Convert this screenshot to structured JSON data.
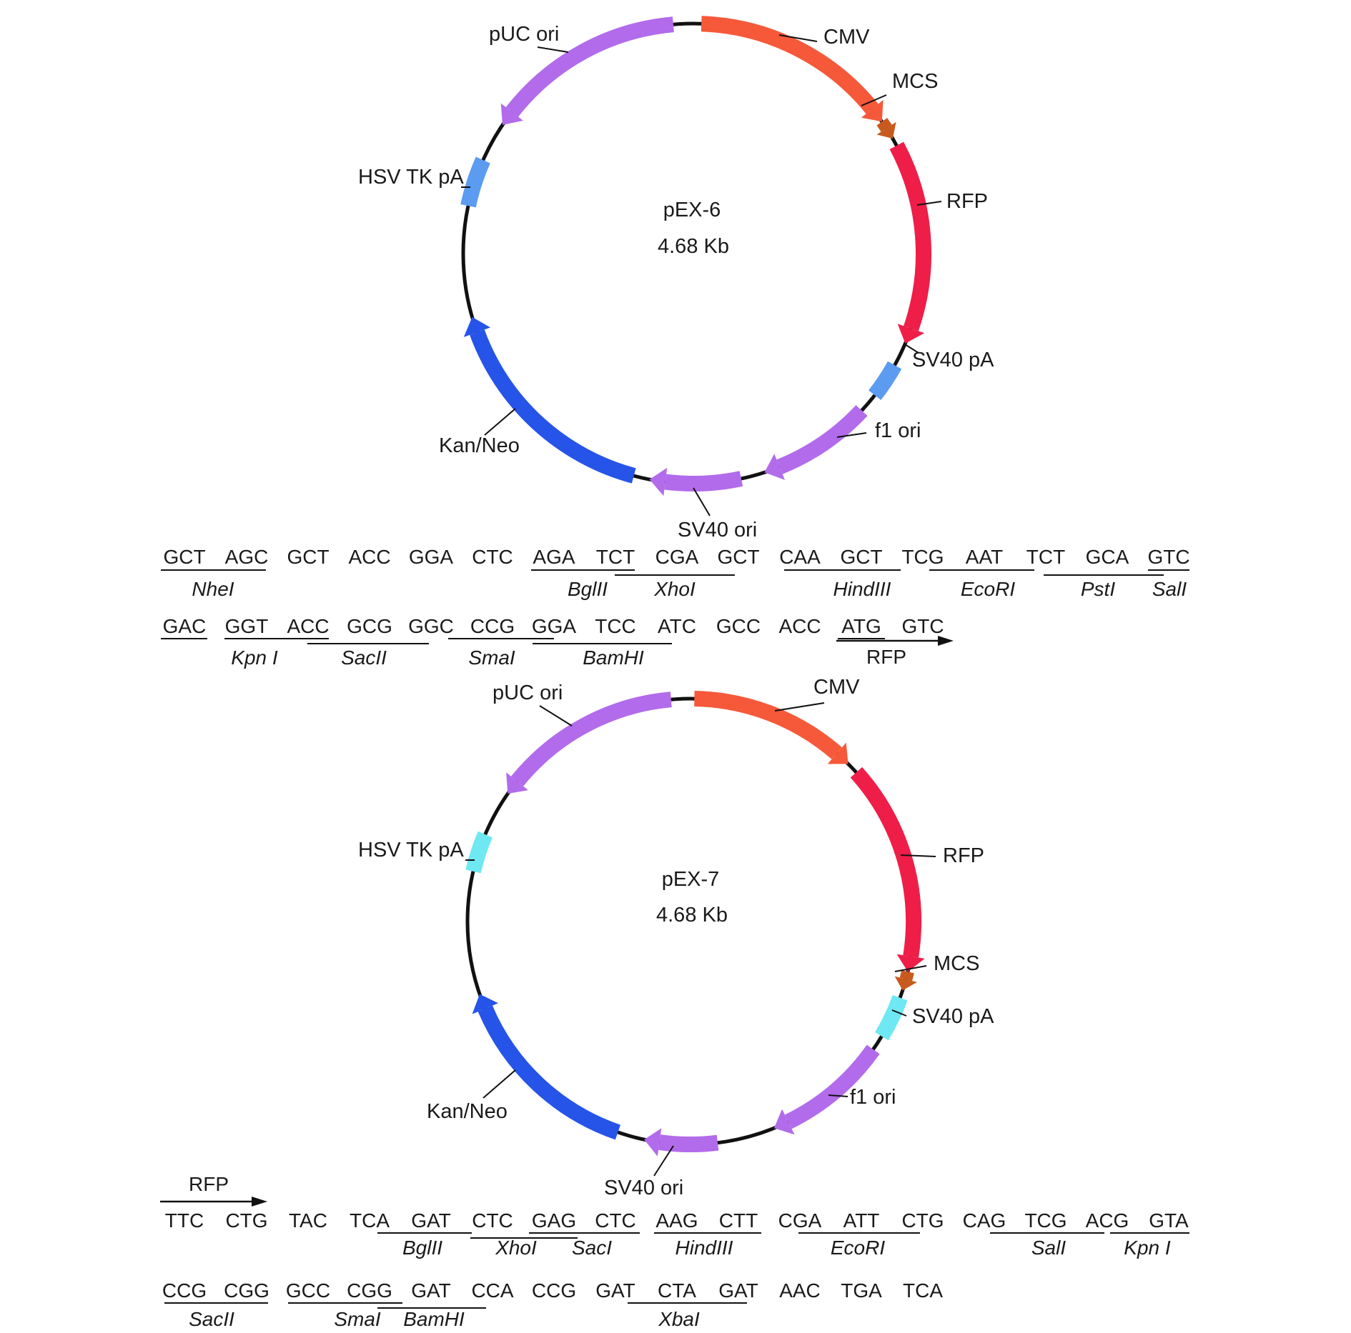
{
  "colors": {
    "cmv": "#F5593A",
    "rfp": "#EE1E48",
    "mcs": "#C85A1E",
    "sv40pa_1": "#5B9BF0",
    "sv40pa_2": "#6EE8F2",
    "hsv_1": "#5B9BF0",
    "hsv_2": "#6EE8F2",
    "ori": "#B26BEB",
    "kan": "#2654E8",
    "backbone": "#111111"
  },
  "plasmids": [
    {
      "id": "pex6",
      "name": "pEX-6",
      "size": "4.68 Kb",
      "features": [
        {
          "key": "cmv",
          "label": "CMV"
        },
        {
          "key": "mcs",
          "label": "MCS"
        },
        {
          "key": "rfp",
          "label": "RFP"
        },
        {
          "key": "sv40pa",
          "label": "SV40 pA"
        },
        {
          "key": "f1",
          "label": "f1 ori"
        },
        {
          "key": "sv40ori",
          "label": "SV40 ori"
        },
        {
          "key": "kan",
          "label": "Kan/Neo"
        },
        {
          "key": "hsv",
          "label": "HSV TK pA"
        },
        {
          "key": "puc",
          "label": "pUC ori"
        }
      ]
    },
    {
      "id": "pex7",
      "name": "pEX-7",
      "size": "4.68 Kb",
      "features": [
        {
          "key": "cmv",
          "label": "CMV"
        },
        {
          "key": "rfp",
          "label": "RFP"
        },
        {
          "key": "mcs",
          "label": "MCS"
        },
        {
          "key": "sv40pa",
          "label": "SV40 pA"
        },
        {
          "key": "f1",
          "label": "f1 ori"
        },
        {
          "key": "sv40ori",
          "label": "SV40 ori"
        },
        {
          "key": "kan",
          "label": "Kan/Neo"
        },
        {
          "key": "hsv",
          "label": "HSV TK pA"
        },
        {
          "key": "puc",
          "label": "pUC ori"
        }
      ]
    }
  ],
  "sequences": {
    "pex6": {
      "row1": {
        "codons": [
          "GCT",
          "AGC",
          "GCT",
          "ACC",
          "GGA",
          "CTC",
          "AGA",
          "TCT",
          "CGA",
          "GCT",
          "CAA",
          "GCT",
          "TCG",
          "AAT",
          "TCT",
          "GCA",
          "GTC"
        ],
        "sites": [
          "NheI",
          "BglII",
          "XhoI",
          "HindIII",
          "EcoRI",
          "PstI",
          "SalI"
        ]
      },
      "row2": {
        "codons": [
          "GAC",
          "GGT",
          "ACC",
          "GCG",
          "GGC",
          "CCG",
          "GGA",
          "TCC",
          "ATC",
          "GCC",
          "ACC",
          "ATG",
          "GTC"
        ],
        "sites": [
          "Kpn I",
          "SacII",
          "SmaI",
          "BamHI"
        ],
        "arrow_label": "RFP"
      }
    },
    "pex7": {
      "arrow_label": "RFP",
      "row1": {
        "codons": [
          "TTC",
          "CTG",
          "TAC",
          "TCA",
          "GAT",
          "CTC",
          "GAG",
          "CTC",
          "AAG",
          "CTT",
          "CGA",
          "ATT",
          "CTG",
          "CAG",
          "TCG",
          "ACG",
          "GTA"
        ],
        "sites": [
          "BglII",
          "XhoI",
          "SacI",
          "HindIII",
          "EcoRI",
          "SalI",
          "Kpn I"
        ]
      },
      "row2": {
        "codons": [
          "CCG",
          "CGG",
          "GCC",
          "CGG",
          "GAT",
          "CCA",
          "CCG",
          "GAT",
          "CTA",
          "GAT",
          "AAC",
          "TGA",
          "TCA"
        ],
        "sites": [
          "SacII",
          "SmaI",
          "BamHI",
          "XbaI"
        ]
      }
    }
  }
}
